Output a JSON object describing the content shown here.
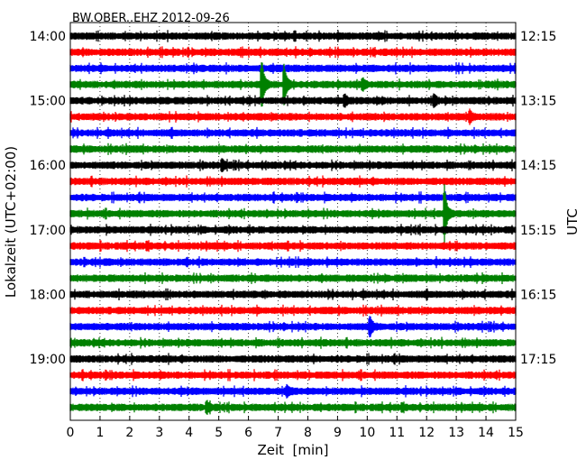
{
  "chart_data": {
    "type": "line",
    "title": "BW.OBER..EHZ 2012-09-26",
    "xlabel": "Zeit  [min]",
    "ylabel_left": "Lokalzeit (UTC+02:00)",
    "ylabel_right": "UTC",
    "xlim": [
      0,
      15
    ],
    "xticks": [
      "0",
      "1",
      "2",
      "3",
      "4",
      "5",
      "6",
      "7",
      "8",
      "9",
      "10",
      "11",
      "12",
      "13",
      "14",
      "15"
    ],
    "left_tick_labels": [
      "14:00",
      "15:00",
      "16:00",
      "17:00",
      "18:00",
      "19:00"
    ],
    "right_tick_labels": [
      "12:15",
      "13:15",
      "14:15",
      "15:15",
      "16:15",
      "17:15"
    ],
    "vertical_grid": "dotted",
    "trace_colors": [
      "#000000",
      "#ff0000",
      "#0000ff",
      "#008000"
    ],
    "traces_count": 24,
    "events": [
      {
        "trace": 3,
        "t": 6.45,
        "amp": 26
      },
      {
        "trace": 3,
        "t": 7.2,
        "amp": 20
      },
      {
        "trace": 3,
        "t": 9.85,
        "amp": 5
      },
      {
        "trace": 4,
        "t": 9.25,
        "amp": 5
      },
      {
        "trace": 4,
        "t": 12.25,
        "amp": 5
      },
      {
        "trace": 5,
        "t": 13.45,
        "amp": 5
      },
      {
        "trace": 8,
        "t": 5.1,
        "amp": 5
      },
      {
        "trace": 11,
        "t": 12.6,
        "amp": 30
      },
      {
        "trace": 18,
        "t": 10.1,
        "amp": 10
      },
      {
        "trace": 22,
        "t": 7.3,
        "amp": 5
      },
      {
        "trace": 23,
        "t": 4.6,
        "amp": 5
      }
    ]
  }
}
